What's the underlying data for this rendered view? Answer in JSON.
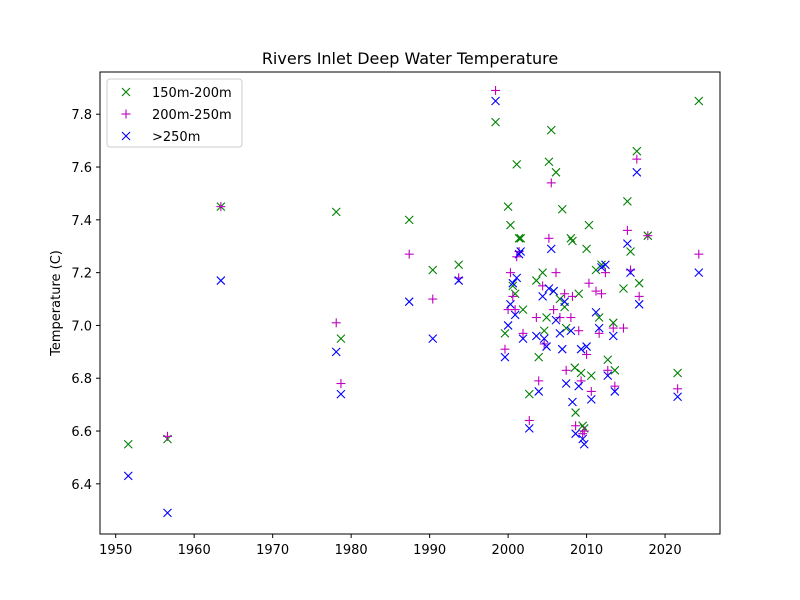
{
  "chart_data": {
    "type": "scatter",
    "title": "Rivers Inlet Deep Water Temperature",
    "xlabel": "",
    "ylabel": "Temperature (C)",
    "xlim": [
      1948,
      2027
    ],
    "ylim": [
      6.21,
      7.96
    ],
    "xticks": [
      1950,
      1960,
      1970,
      1980,
      1990,
      2000,
      2010,
      2020
    ],
    "yticks": [
      6.4,
      6.6,
      6.8,
      7.0,
      7.2,
      7.4,
      7.6,
      7.8
    ],
    "grid": false,
    "legend_position": "top-left",
    "series": [
      {
        "name": "150m-200m",
        "marker": "x",
        "color": "#008000",
        "points": [
          [
            1951.6,
            6.55
          ],
          [
            1956.6,
            6.57
          ],
          [
            1963.4,
            7.45
          ],
          [
            1978.1,
            7.43
          ],
          [
            1978.7,
            6.95
          ],
          [
            1987.4,
            7.4
          ],
          [
            1990.4,
            7.21
          ],
          [
            1993.7,
            7.23
          ],
          [
            1998.4,
            7.77
          ],
          [
            1999.6,
            6.97
          ],
          [
            2000.0,
            7.45
          ],
          [
            2000.3,
            7.38
          ],
          [
            2000.6,
            7.15
          ],
          [
            2000.9,
            7.12
          ],
          [
            2001.1,
            7.61
          ],
          [
            2001.4,
            7.33
          ],
          [
            2001.6,
            7.33
          ],
          [
            2001.9,
            7.06
          ],
          [
            2002.7,
            6.74
          ],
          [
            2003.6,
            7.17
          ],
          [
            2003.9,
            6.88
          ],
          [
            2004.4,
            7.2
          ],
          [
            2004.6,
            6.98
          ],
          [
            2004.9,
            7.03
          ],
          [
            2005.2,
            7.62
          ],
          [
            2005.5,
            7.74
          ],
          [
            2005.8,
            7.13
          ],
          [
            2006.1,
            7.58
          ],
          [
            2006.6,
            7.1
          ],
          [
            2006.9,
            7.44
          ],
          [
            2007.2,
            7.07
          ],
          [
            2007.4,
            6.99
          ],
          [
            2008.0,
            7.33
          ],
          [
            2008.2,
            7.32
          ],
          [
            2008.5,
            6.84
          ],
          [
            2008.6,
            6.67
          ],
          [
            2009.0,
            7.12
          ],
          [
            2009.3,
            6.82
          ],
          [
            2009.5,
            6.62
          ],
          [
            2009.7,
            6.61
          ],
          [
            2010.0,
            7.29
          ],
          [
            2010.3,
            7.38
          ],
          [
            2010.6,
            6.81
          ],
          [
            2011.2,
            7.21
          ],
          [
            2011.6,
            7.03
          ],
          [
            2011.9,
            7.23
          ],
          [
            2012.7,
            6.87
          ],
          [
            2013.4,
            7.01
          ],
          [
            2013.6,
            6.83
          ],
          [
            2014.7,
            7.14
          ],
          [
            2015.2,
            7.47
          ],
          [
            2015.6,
            7.28
          ],
          [
            2016.4,
            7.66
          ],
          [
            2016.7,
            7.16
          ],
          [
            2017.8,
            7.34
          ],
          [
            2021.6,
            6.82
          ],
          [
            2024.3,
            7.85
          ]
        ]
      },
      {
        "name": "200m-250m",
        "marker": "+",
        "color": "#bf00bf",
        "points": [
          [
            1956.6,
            6.58
          ],
          [
            1963.4,
            7.45
          ],
          [
            1978.1,
            7.01
          ],
          [
            1978.7,
            6.78
          ],
          [
            1987.4,
            7.27
          ],
          [
            1990.4,
            7.1
          ],
          [
            1993.7,
            7.18
          ],
          [
            1998.4,
            7.89
          ],
          [
            1999.6,
            6.91
          ],
          [
            2000.0,
            7.06
          ],
          [
            2000.3,
            7.2
          ],
          [
            2000.6,
            7.11
          ],
          [
            2000.9,
            7.06
          ],
          [
            2001.1,
            7.26
          ],
          [
            2001.4,
            7.28
          ],
          [
            2001.9,
            6.97
          ],
          [
            2002.7,
            6.64
          ],
          [
            2003.6,
            7.03
          ],
          [
            2003.9,
            6.79
          ],
          [
            2004.4,
            7.15
          ],
          [
            2004.6,
            6.93
          ],
          [
            2005.2,
            7.33
          ],
          [
            2005.5,
            7.54
          ],
          [
            2005.8,
            7.06
          ],
          [
            2006.1,
            7.2
          ],
          [
            2006.6,
            7.03
          ],
          [
            2007.2,
            7.12
          ],
          [
            2007.4,
            6.83
          ],
          [
            2008.0,
            7.03
          ],
          [
            2008.2,
            7.11
          ],
          [
            2008.6,
            6.62
          ],
          [
            2009.0,
            6.98
          ],
          [
            2009.3,
            6.79
          ],
          [
            2009.5,
            6.59
          ],
          [
            2009.7,
            6.6
          ],
          [
            2010.0,
            6.89
          ],
          [
            2010.3,
            7.16
          ],
          [
            2010.6,
            6.75
          ],
          [
            2011.2,
            7.13
          ],
          [
            2011.6,
            6.97
          ],
          [
            2011.9,
            7.12
          ],
          [
            2012.4,
            7.2
          ],
          [
            2012.7,
            6.83
          ],
          [
            2013.4,
            6.99
          ],
          [
            2013.6,
            6.77
          ],
          [
            2014.7,
            6.99
          ],
          [
            2015.2,
            7.36
          ],
          [
            2015.6,
            7.21
          ],
          [
            2016.4,
            7.63
          ],
          [
            2016.7,
            7.11
          ],
          [
            2017.8,
            7.34
          ],
          [
            2021.6,
            6.76
          ],
          [
            2024.3,
            7.27
          ]
        ]
      },
      {
        "name": ">250m",
        "marker": "x",
        "color": "#0000ff",
        "points": [
          [
            1951.6,
            6.43
          ],
          [
            1956.6,
            6.29
          ],
          [
            1963.4,
            7.17
          ],
          [
            1978.1,
            6.9
          ],
          [
            1978.7,
            6.74
          ],
          [
            1987.4,
            7.09
          ],
          [
            1990.4,
            6.95
          ],
          [
            1993.7,
            7.17
          ],
          [
            1998.4,
            7.85
          ],
          [
            1999.6,
            6.88
          ],
          [
            2000.0,
            7.0
          ],
          [
            2000.3,
            7.08
          ],
          [
            2000.6,
            7.16
          ],
          [
            2000.9,
            7.04
          ],
          [
            2001.1,
            7.18
          ],
          [
            2001.4,
            7.27
          ],
          [
            2001.6,
            7.28
          ],
          [
            2001.9,
            6.95
          ],
          [
            2002.7,
            6.61
          ],
          [
            2003.6,
            6.96
          ],
          [
            2003.9,
            6.75
          ],
          [
            2004.4,
            7.11
          ],
          [
            2004.6,
            6.95
          ],
          [
            2004.9,
            6.92
          ],
          [
            2005.2,
            7.14
          ],
          [
            2005.5,
            7.29
          ],
          [
            2005.8,
            7.13
          ],
          [
            2006.1,
            7.02
          ],
          [
            2006.6,
            6.97
          ],
          [
            2006.9,
            6.91
          ],
          [
            2007.2,
            7.09
          ],
          [
            2007.4,
            6.78
          ],
          [
            2008.0,
            6.98
          ],
          [
            2008.2,
            6.71
          ],
          [
            2008.6,
            6.59
          ],
          [
            2009.0,
            6.77
          ],
          [
            2009.3,
            6.91
          ],
          [
            2009.5,
            6.57
          ],
          [
            2009.7,
            6.55
          ],
          [
            2010.0,
            6.92
          ],
          [
            2010.6,
            6.72
          ],
          [
            2011.2,
            7.05
          ],
          [
            2011.6,
            6.99
          ],
          [
            2011.9,
            7.22
          ],
          [
            2012.4,
            7.23
          ],
          [
            2012.7,
            6.81
          ],
          [
            2013.4,
            6.96
          ],
          [
            2013.6,
            6.75
          ],
          [
            2015.2,
            7.31
          ],
          [
            2015.6,
            7.2
          ],
          [
            2016.4,
            7.58
          ],
          [
            2016.7,
            7.08
          ],
          [
            2021.6,
            6.73
          ],
          [
            2024.3,
            7.2
          ]
        ]
      }
    ]
  }
}
